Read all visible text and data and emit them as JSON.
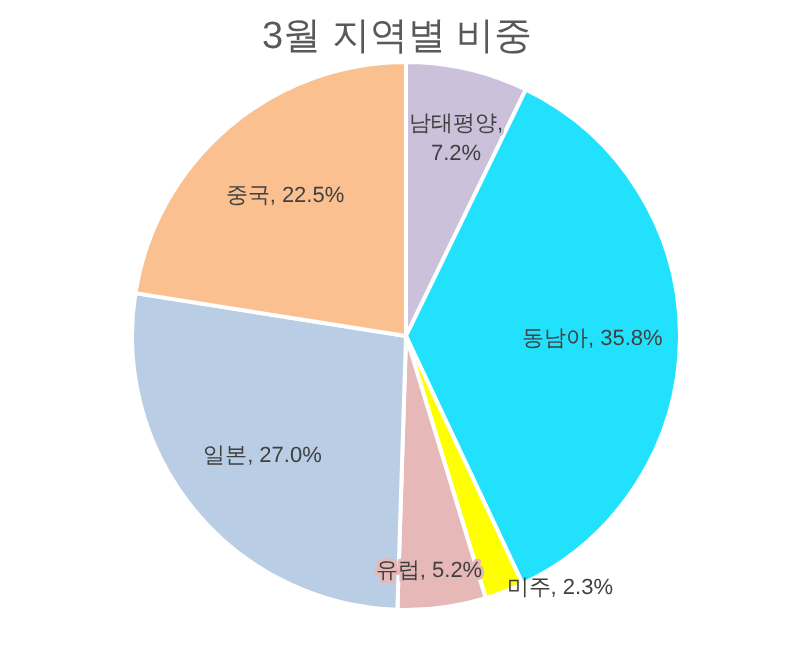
{
  "chart_data": {
    "type": "pie",
    "title": "3월 지역별 비중",
    "categories": [
      "남태평양",
      "동남아",
      "미주",
      "유럽",
      "일본",
      "중국"
    ],
    "values": [
      7.2,
      35.8,
      2.3,
      5.2,
      27.0,
      22.5
    ],
    "colors": [
      "#ccc1da",
      "#22e1fc",
      "#ffff00",
      "#e6b9b8",
      "#b9cde5",
      "#fac090"
    ],
    "value_labels": [
      ",\n7.2%",
      ", 35.8%",
      ", 2.3%",
      ", 5.2%",
      ", 27.0%",
      ", 22.5%"
    ],
    "legend": false
  }
}
